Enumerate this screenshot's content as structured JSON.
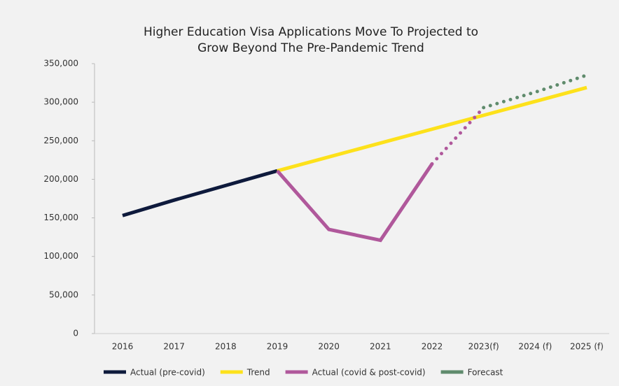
{
  "chart_data": {
    "type": "line",
    "title": [
      "Higher Education Visa Applications Move To Projected to",
      "Grow Beyond The Pre-Pandemic Trend"
    ],
    "categories": [
      "2016",
      "2017",
      "2018",
      "2019",
      "2020",
      "2021",
      "2022",
      "2023(f)",
      "2024 (f)",
      "2025 (f)"
    ],
    "series": [
      {
        "name": "Actual (pre-covid)",
        "color": "#0e1a3c",
        "values": [
          153000,
          173000,
          192000,
          211000,
          null,
          null,
          null,
          null,
          null,
          null
        ]
      },
      {
        "name": "Trend",
        "color": "#fde11b",
        "values": [
          null,
          null,
          null,
          211000,
          229000,
          247000,
          265000,
          283000,
          301000,
          319000
        ]
      },
      {
        "name": "Actual (covid & post-covid)",
        "color": "#b0589b",
        "values": [
          null,
          null,
          null,
          211000,
          135000,
          121000,
          220000,
          293000,
          null,
          null
        ],
        "dotted_from": 6
      },
      {
        "name": "Forecast",
        "color": "#5f8b6c",
        "values": [
          null,
          null,
          null,
          null,
          null,
          null,
          null,
          293000,
          313000,
          335000
        ],
        "dotted_from": 7
      }
    ],
    "ylim": [
      0,
      350000
    ],
    "yticks": [
      0,
      {
        "value": 50000,
        "label": "50,000"
      },
      {
        "value": 100000,
        "label": "100,000"
      },
      {
        "value": 150000,
        "label": "150,000"
      },
      {
        "value": 200000,
        "label": "200,000"
      },
      {
        "value": 250000,
        "label": "250,000"
      },
      {
        "value": 300000,
        "label": "300,000"
      },
      {
        "value": 350000,
        "label": "350,000"
      }
    ],
    "legend": "bottom"
  }
}
